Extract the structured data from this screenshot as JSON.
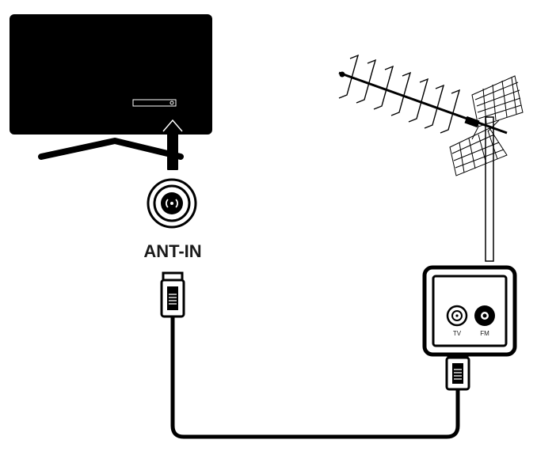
{
  "diagram": {
    "ant_in_label": "ANT-IN",
    "wall_socket": {
      "tv_label": "TV",
      "fm_label": "FM"
    }
  },
  "icons": [
    "tv-icon",
    "arrow-up-icon",
    "antenna-socket-icon",
    "coax-plug-icon",
    "aerial-antenna-icon",
    "wall-socket-icon"
  ]
}
